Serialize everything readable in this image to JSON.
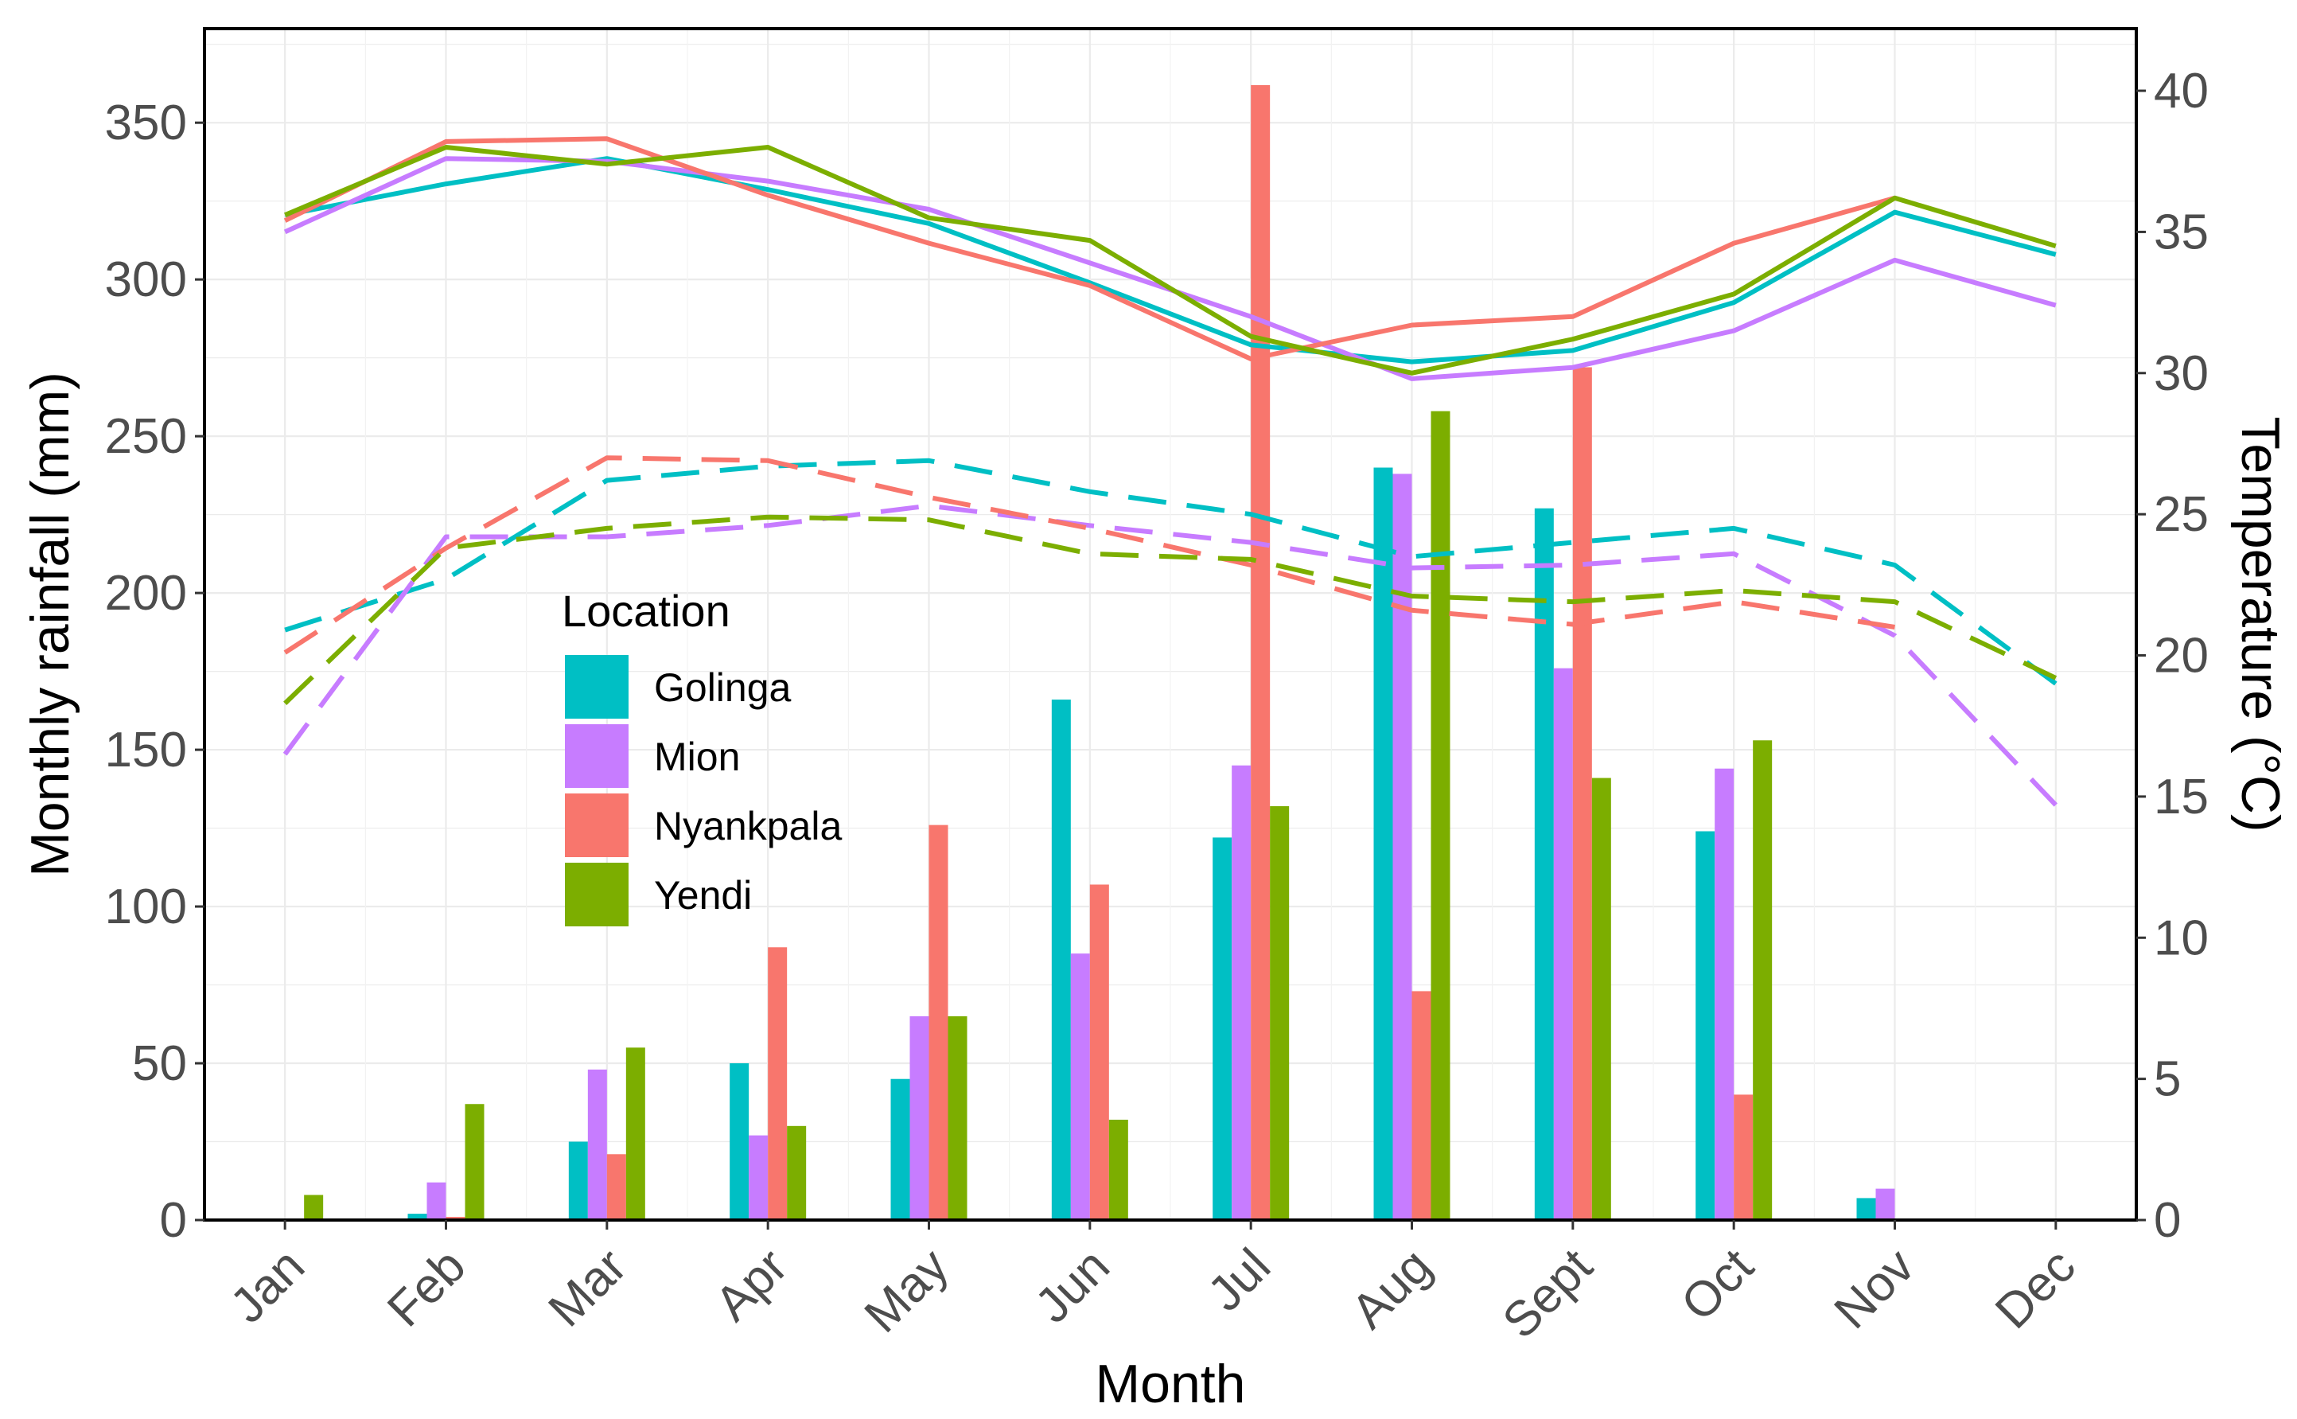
{
  "chart_data": {
    "type": "bar",
    "xlabel": "Month",
    "ylabel": "Monthly rainfall (mm)",
    "y2label": "Temperature (°C)",
    "ylim": [
      0,
      380
    ],
    "y2lim": [
      0,
      42.2
    ],
    "yticks": [
      "0",
      "50",
      "100",
      "150",
      "200",
      "250",
      "300",
      "350"
    ],
    "y2ticks": [
      "0",
      "5",
      "10",
      "15",
      "20",
      "25",
      "30",
      "35",
      "40"
    ],
    "grid": true,
    "categories": [
      "Jan",
      "Feb",
      "Mar",
      "Apr",
      "May",
      "Jun",
      "Jul",
      "Aug",
      "Sept",
      "Oct",
      "Nov",
      "Dec"
    ],
    "legend": {
      "title": "Location",
      "placement": "center-left"
    },
    "series": [
      {
        "name": "Golinga",
        "color": "#00BFC4",
        "rainfall": [
          0,
          2,
          25,
          50,
          45,
          166,
          122,
          240,
          227,
          124,
          7,
          0
        ],
        "tmax": [
          35.6,
          36.7,
          37.6,
          36.5,
          35.3,
          33.2,
          31.0,
          30.4,
          30.8,
          32.5,
          35.7,
          34.2
        ],
        "tmin": [
          20.9,
          22.7,
          26.2,
          26.7,
          26.9,
          25.8,
          25.0,
          23.5,
          24.0,
          24.5,
          23.2,
          19.0
        ]
      },
      {
        "name": "Mion",
        "color": "#C77CFF",
        "rainfall": [
          0,
          12,
          48,
          27,
          65,
          85,
          145,
          238,
          176,
          144,
          10,
          0
        ],
        "tmax": [
          35.0,
          37.6,
          37.5,
          36.8,
          35.8,
          33.9,
          32.0,
          29.8,
          30.2,
          31.5,
          34.0,
          32.4
        ],
        "tmin": [
          16.5,
          24.2,
          24.2,
          24.6,
          25.3,
          24.6,
          24.0,
          23.1,
          23.2,
          23.6,
          20.7,
          14.7
        ]
      },
      {
        "name": "Nyankpala",
        "color": "#F8766D",
        "rainfall": [
          0,
          1,
          21,
          87,
          126,
          107,
          362,
          73,
          272,
          40,
          0,
          0
        ],
        "tmax": [
          35.4,
          38.2,
          38.3,
          36.3,
          34.6,
          33.1,
          30.5,
          31.7,
          32.0,
          34.6,
          36.2,
          null
        ],
        "tmin": [
          20.1,
          23.8,
          27.0,
          26.9,
          25.6,
          24.5,
          23.2,
          21.6,
          21.1,
          21.9,
          21.0,
          null
        ]
      },
      {
        "name": "Yendi",
        "color": "#7CAE00",
        "rainfall": [
          8,
          37,
          55,
          30,
          65,
          32,
          132,
          258,
          141,
          153,
          0,
          0
        ],
        "tmax": [
          35.6,
          38.0,
          37.4,
          38.0,
          35.5,
          34.7,
          31.3,
          30.0,
          31.2,
          32.8,
          36.2,
          34.5
        ],
        "tmin": [
          18.3,
          23.8,
          24.5,
          24.9,
          24.8,
          23.6,
          23.4,
          22.1,
          21.9,
          22.3,
          21.9,
          19.2
        ]
      }
    ]
  }
}
